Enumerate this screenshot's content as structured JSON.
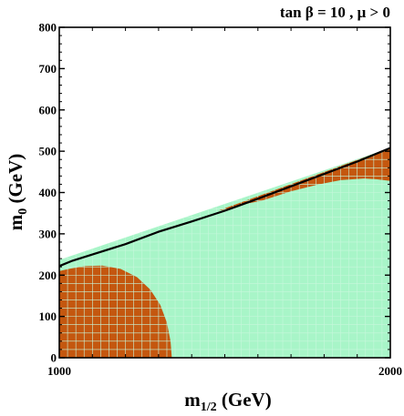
{
  "chart_data": {
    "type": "area",
    "title": "tan β = 10 ,  μ > 0",
    "xlabel_main": "m",
    "xlabel_sub": "1/2",
    "xlabel_unit": " (GeV)",
    "ylabel_main": "m",
    "ylabel_sub": "0",
    "ylabel_unit": " (GeV)",
    "xlim": [
      1000,
      2000
    ],
    "ylim": [
      0,
      800
    ],
    "x_ticks": [
      1000,
      2000
    ],
    "y_ticks": [
      0,
      100,
      200,
      300,
      400,
      500,
      600,
      700,
      800
    ],
    "grid": true,
    "colors": {
      "allowed_region": "#a8f5c8",
      "excluded_region": "#c4570f",
      "boundary_line": "#000000",
      "grid": "#c7f7dc"
    },
    "regions": [
      {
        "kind": "allowed",
        "polygon": [
          [
            1000,
            0
          ],
          [
            2000,
            0
          ],
          [
            2000,
            508
          ],
          [
            1000,
            237
          ]
        ]
      },
      {
        "kind": "excluded",
        "polygon": [
          [
            1000,
            0
          ],
          [
            1340,
            0
          ],
          [
            1336,
            40
          ],
          [
            1325,
            85
          ],
          [
            1305,
            128
          ],
          [
            1275,
            165
          ],
          [
            1235,
            195
          ],
          [
            1185,
            215
          ],
          [
            1130,
            223
          ],
          [
            1080,
            222
          ],
          [
            1035,
            216
          ],
          [
            1000,
            210
          ]
        ]
      },
      {
        "kind": "excluded",
        "polygon": [
          [
            1480,
            356
          ],
          [
            1520,
            362
          ],
          [
            1540,
            370
          ],
          [
            1560,
            372
          ],
          [
            1610,
            380
          ],
          [
            1650,
            390
          ],
          [
            1700,
            403
          ],
          [
            1780,
            419
          ],
          [
            1850,
            430
          ],
          [
            1920,
            434
          ],
          [
            1960,
            432
          ],
          [
            2000,
            428
          ],
          [
            2000,
            508
          ],
          [
            1480,
            356
          ]
        ]
      }
    ],
    "series": [
      {
        "x": [
          1000,
          1040,
          1100,
          1200,
          1300,
          1400,
          1500,
          1600,
          1700,
          1800,
          1900,
          2000
        ],
        "y": [
          222,
          235,
          250,
          275,
          305,
          330,
          356,
          385,
          415,
          445,
          475,
          508
        ]
      }
    ]
  }
}
